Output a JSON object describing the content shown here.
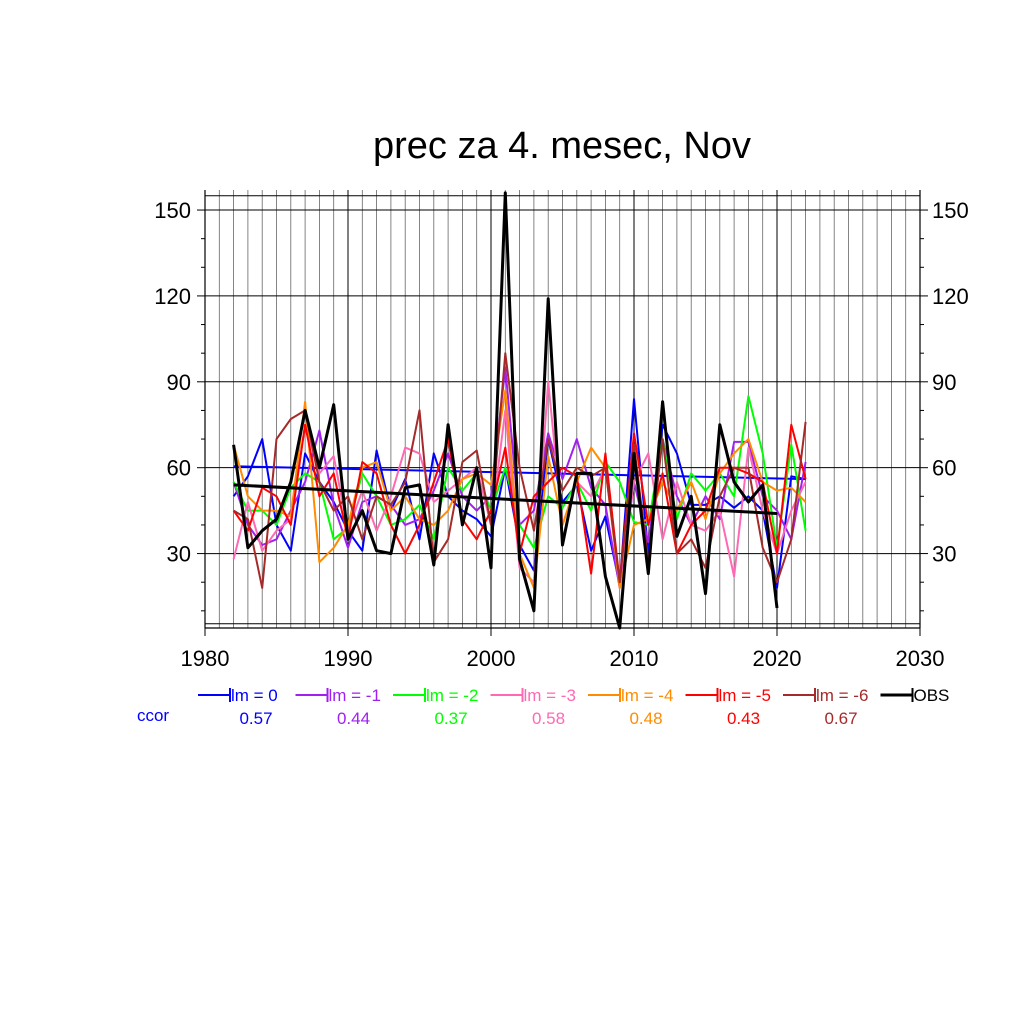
{
  "chart_data": {
    "type": "line",
    "title": "prec za 4. mesec, Nov",
    "xlabel": "",
    "ylabel": "",
    "xlim": [
      1980,
      2030
    ],
    "ylim": [
      4,
      157
    ],
    "x_ticks": [
      1980,
      1990,
      2000,
      2010,
      2020,
      2030
    ],
    "y_ticks": [
      30,
      60,
      90,
      120,
      150
    ],
    "grid": true,
    "legend_position": "bottom",
    "ccor_label": "ccor",
    "x": [
      1982,
      1983,
      1984,
      1985,
      1986,
      1987,
      1988,
      1989,
      1990,
      1991,
      1992,
      1993,
      1994,
      1995,
      1996,
      1997,
      1998,
      1999,
      2000,
      2001,
      2002,
      2003,
      2004,
      2005,
      2006,
      2007,
      2008,
      2009,
      2010,
      2011,
      2012,
      2013,
      2014,
      2015,
      2016,
      2017,
      2018,
      2019,
      2020,
      2021,
      2022
    ],
    "series": [
      {
        "name": "lm = 0",
        "ccor": "0.57",
        "color": "#0000ff",
        "values": [
          50,
          57,
          70,
          40,
          31,
          65,
          55,
          48,
          38,
          31,
          66,
          45,
          56,
          35,
          65,
          50,
          45,
          42,
          36,
          60,
          33,
          24,
          70,
          48,
          54,
          31,
          43,
          19,
          84,
          30,
          75,
          65,
          47,
          47,
          50,
          46,
          50,
          45,
          18,
          57,
          56
        ],
        "trend": [
          60.5,
          56.0
        ]
      },
      {
        "name": "lm = -1",
        "ccor": "0.44",
        "color": "#a020f0",
        "values": [
          55,
          40,
          33,
          35,
          45,
          55,
          73,
          47,
          32,
          48,
          50,
          47,
          40,
          42,
          52,
          65,
          50,
          45,
          50,
          95,
          40,
          45,
          72,
          56,
          70,
          53,
          47,
          18,
          55,
          34,
          70,
          50,
          40,
          50,
          42,
          69,
          69,
          50,
          45,
          35,
          62
        ]
      },
      {
        "name": "lm = -2",
        "ccor": "0.37",
        "color": "#00ff00",
        "values": [
          55,
          45,
          45,
          40,
          53,
          58,
          55,
          35,
          39,
          58,
          50,
          40,
          42,
          47,
          35,
          60,
          52,
          58,
          45,
          60,
          40,
          32,
          50,
          46,
          55,
          45,
          62,
          55,
          41,
          40,
          70,
          42,
          58,
          52,
          58,
          50,
          85,
          65,
          32,
          68,
          38
        ]
      },
      {
        "name": "lm = -3",
        "ccor": "0.58",
        "color": "#ff69b4",
        "values": [
          28,
          48,
          31,
          38,
          42,
          75,
          58,
          64,
          38,
          52,
          38,
          50,
          67,
          65,
          48,
          52,
          56,
          60,
          40,
          80,
          25,
          20,
          90,
          40,
          55,
          50,
          60,
          20,
          55,
          65,
          35,
          55,
          40,
          38,
          45,
          22,
          67,
          45,
          30,
          45,
          55
        ]
      },
      {
        "name": "lm = -4",
        "ccor": "0.48",
        "color": "#ff8c00",
        "values": [
          68,
          50,
          45,
          45,
          43,
          83,
          27,
          32,
          40,
          60,
          62,
          45,
          50,
          42,
          40,
          45,
          56,
          58,
          54,
          87,
          30,
          18,
          64,
          40,
          55,
          67,
          60,
          18,
          40,
          42,
          55,
          45,
          55,
          42,
          58,
          65,
          70,
          55,
          52,
          53,
          48
        ]
      },
      {
        "name": "lm = -5",
        "ccor": "0.43",
        "color": "#ff0000",
        "values": [
          45,
          38,
          53,
          50,
          40,
          75,
          50,
          58,
          35,
          62,
          58,
          40,
          30,
          40,
          55,
          70,
          42,
          35,
          45,
          67,
          30,
          50,
          55,
          60,
          57,
          23,
          65,
          20,
          72,
          40,
          58,
          30,
          40,
          45,
          60,
          60,
          58,
          55,
          30,
          75,
          56
        ]
      },
      {
        "name": "lm = -6",
        "ccor": "0.67",
        "color": "#a52a2a",
        "values": [
          45,
          42,
          18,
          70,
          77,
          80,
          55,
          45,
          50,
          35,
          50,
          47,
          55,
          80,
          27,
          35,
          62,
          66,
          40,
          100,
          60,
          38,
          70,
          52,
          60,
          57,
          60,
          20,
          68,
          27,
          70,
          30,
          35,
          25,
          50,
          60,
          60,
          32,
          20,
          35,
          76
        ]
      },
      {
        "name": "OBS",
        "ccor": "",
        "color": "#000000",
        "values": [
          68,
          32,
          38,
          42,
          55,
          80,
          60,
          82,
          35,
          45,
          31,
          30,
          53,
          54,
          26,
          75,
          40,
          60,
          25,
          156,
          28,
          10,
          119,
          33,
          58,
          58,
          22,
          4,
          65,
          23,
          83,
          36,
          50,
          16,
          75,
          55,
          48,
          54,
          11,
          null,
          null
        ],
        "trend": [
          54.0,
          44.0
        ]
      }
    ]
  }
}
